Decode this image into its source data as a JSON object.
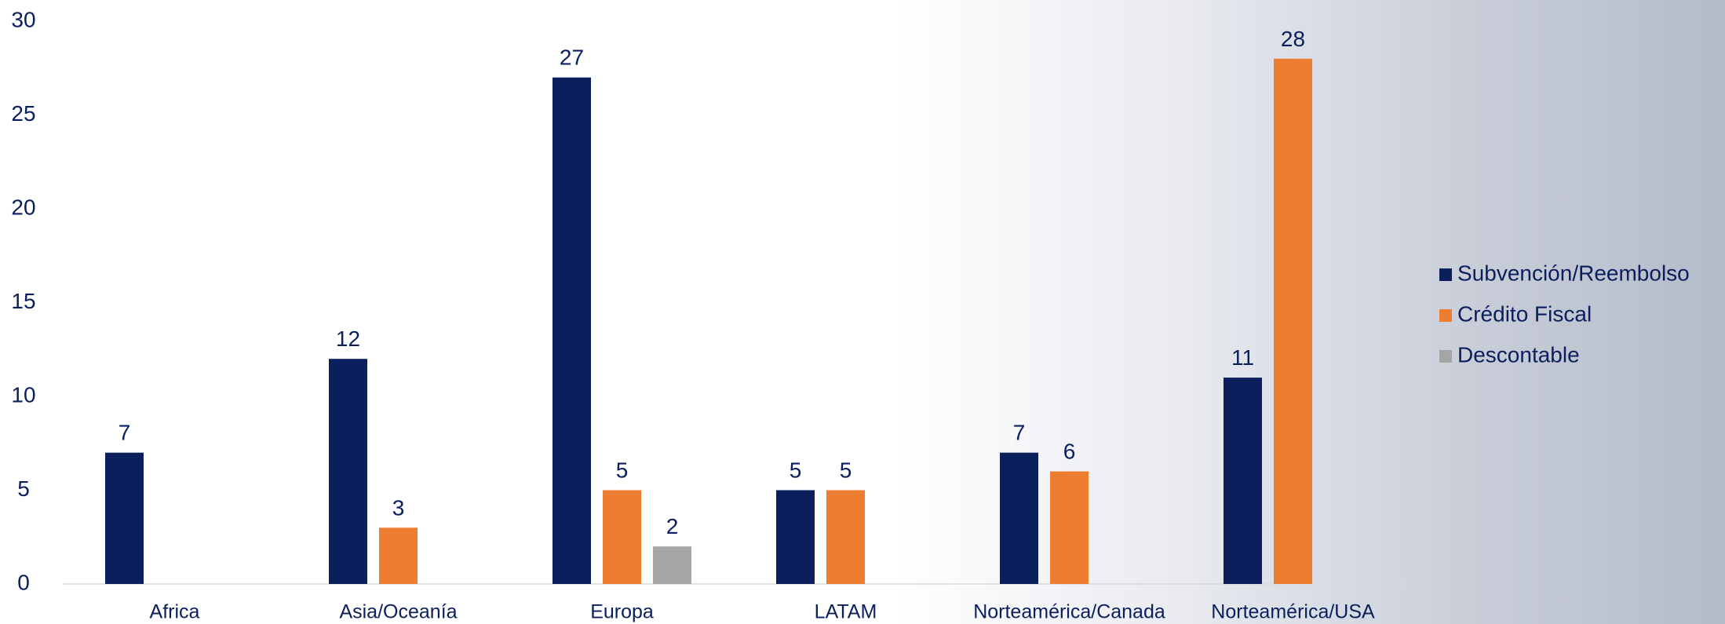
{
  "chart_data": {
    "type": "bar",
    "categories": [
      "Africa",
      "Asia/Oceanía",
      "Europa",
      "LATAM",
      "Norteamérica/Canada",
      "Norteamérica/USA"
    ],
    "series": [
      {
        "name": "Subvención/Reembolso",
        "color": "#0a1f5c",
        "values": [
          7,
          12,
          27,
          5,
          7,
          11
        ]
      },
      {
        "name": "Crédito Fiscal",
        "color": "#ed7d31",
        "values": [
          null,
          3,
          5,
          5,
          6,
          28
        ]
      },
      {
        "name": "Descontable",
        "color": "#a5a5a5",
        "values": [
          null,
          null,
          2,
          null,
          null,
          null
        ]
      }
    ],
    "ylim": [
      0,
      30
    ],
    "yticks": [
      0,
      5,
      10,
      15,
      20,
      25,
      30
    ],
    "grid": false,
    "legend": "right"
  }
}
